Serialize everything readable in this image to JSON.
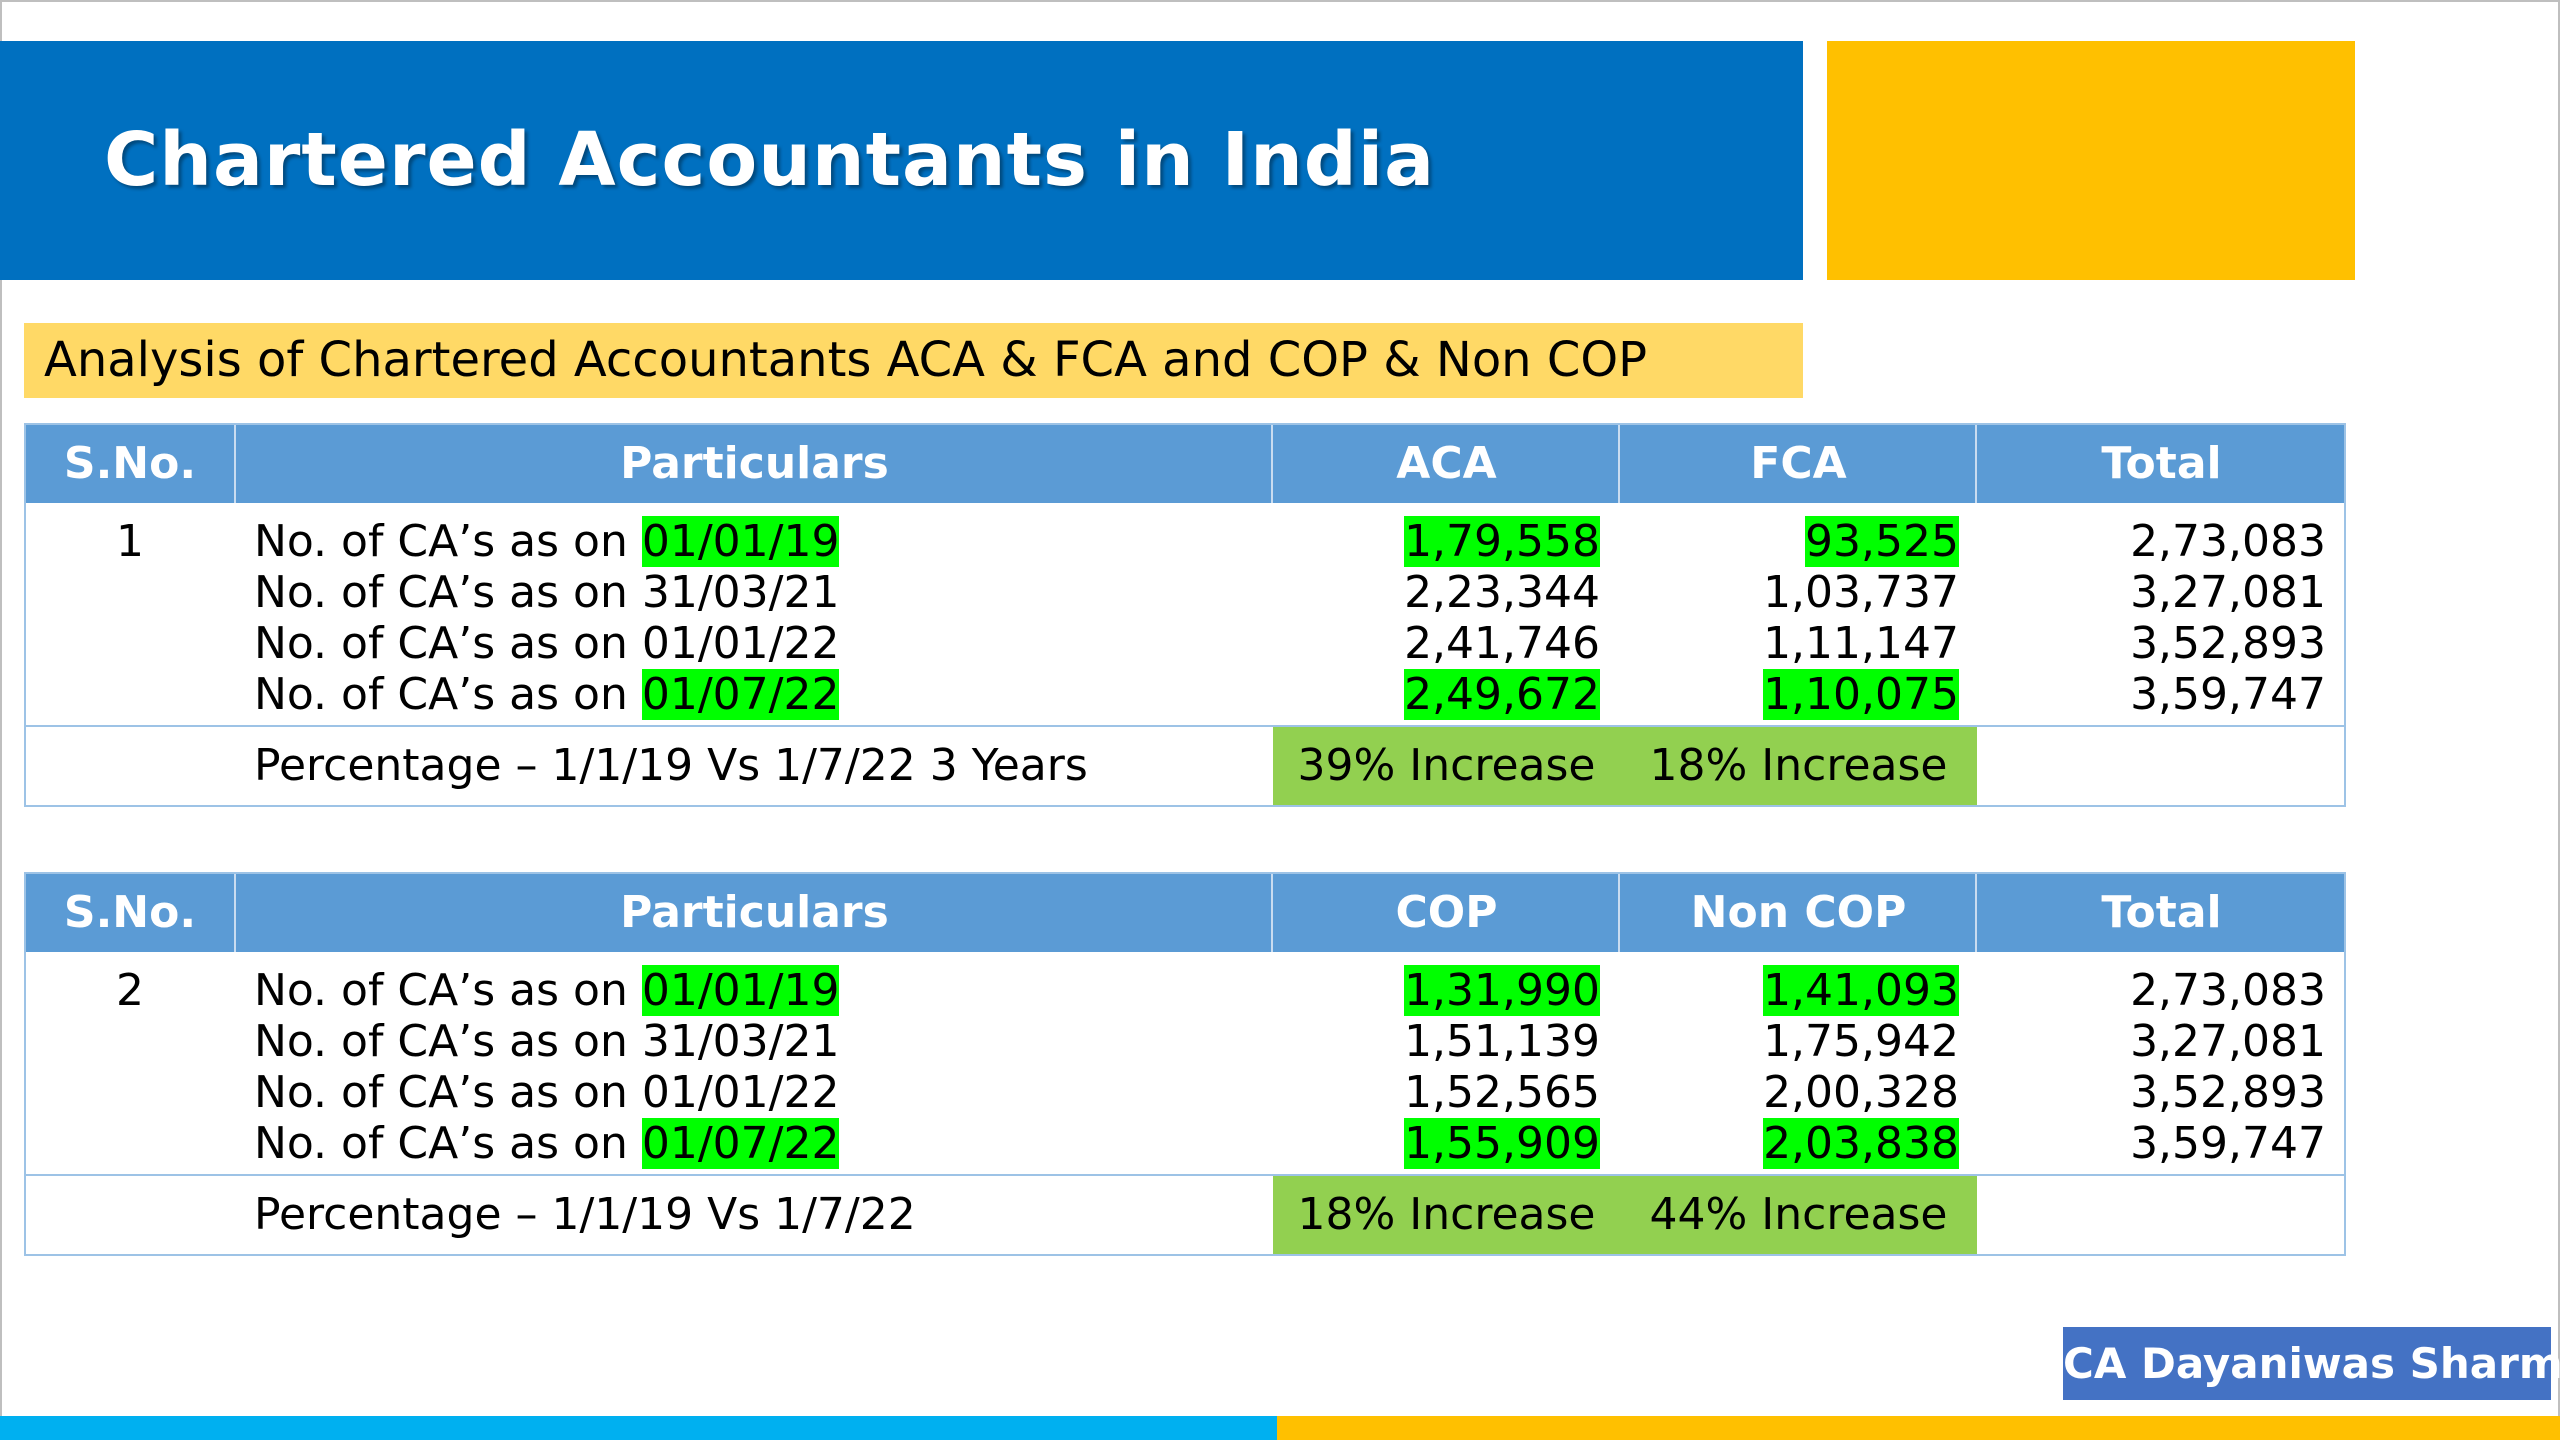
{
  "slide": {
    "title": "Chartered Accountants in India",
    "subtitle": "Analysis of Chartered Accountants ACA & FCA and COP & Non COP",
    "author": "CA Dayaniwas Sharma"
  },
  "colors": {
    "title_band": "#0070c0",
    "accent_gold": "#ffc000",
    "subtitle_band": "#ffd966",
    "table_header": "#5b9bd5",
    "highlight": "#00ff00",
    "increase_fill": "#92d050",
    "author_badge": "#4472c4",
    "bottom_bar_left": "#00b0f0",
    "bottom_bar_right": "#ffc000"
  },
  "tables": [
    {
      "headers": [
        "S.No.",
        "Particulars",
        "ACA",
        "FCA",
        "Total"
      ],
      "sno": "1",
      "rows": [
        {
          "prefix": "No. of CA’s as on ",
          "date": "01/01/19",
          "date_hl": true,
          "c1": "1,79,558",
          "c1_hl": true,
          "c2": "93,525",
          "c2_hl": true,
          "total": "2,73,083"
        },
        {
          "prefix": "No. of CA’s as on ",
          "date": "31/03/21",
          "date_hl": false,
          "c1": "2,23,344",
          "c1_hl": false,
          "c2": "1,03,737",
          "c2_hl": false,
          "total": "3,27,081"
        },
        {
          "prefix": "No. of CA’s as on ",
          "date": "01/01/22",
          "date_hl": false,
          "c1": "2,41,746",
          "c1_hl": false,
          "c2": "1,11,147",
          "c2_hl": false,
          "total": "3,52,893"
        },
        {
          "prefix": "No. of CA’s as on ",
          "date": "01/07/22",
          "date_hl": true,
          "c1": "2,49,672",
          "c1_hl": true,
          "c2": "1,10,075",
          "c2_hl": true,
          "total": "3,59,747"
        }
      ],
      "percentage": {
        "label": "Percentage – 1/1/19 Vs 1/7/22 3 Years",
        "c1": "39% Increase",
        "c2": "18% Increase"
      }
    },
    {
      "headers": [
        "S.No.",
        "Particulars",
        "COP",
        "Non COP",
        "Total"
      ],
      "sno": "2",
      "rows": [
        {
          "prefix": "No. of CA’s as on ",
          "date": "01/01/19",
          "date_hl": true,
          "c1": "1,31,990",
          "c1_hl": true,
          "c2": "1,41,093",
          "c2_hl": true,
          "total": "2,73,083"
        },
        {
          "prefix": "No. of CA’s as on ",
          "date": "31/03/21",
          "date_hl": false,
          "c1": "1,51,139",
          "c1_hl": false,
          "c2": "1,75,942",
          "c2_hl": false,
          "total": "3,27,081"
        },
        {
          "prefix": "No. of CA’s as on ",
          "date": "01/01/22",
          "date_hl": false,
          "c1": "1,52,565",
          "c1_hl": false,
          "c2": "2,00,328",
          "c2_hl": false,
          "total": "3,52,893"
        },
        {
          "prefix": "No. of CA’s as on ",
          "date": "01/07/22",
          "date_hl": true,
          "c1": "1,55,909",
          "c1_hl": true,
          "c2": "2,03,838",
          "c2_hl": true,
          "total": "3,59,747"
        }
      ],
      "percentage": {
        "label": "Percentage – 1/1/19 Vs 1/7/22",
        "c1": "18% Increase",
        "c2": "44% Increase"
      }
    }
  ]
}
